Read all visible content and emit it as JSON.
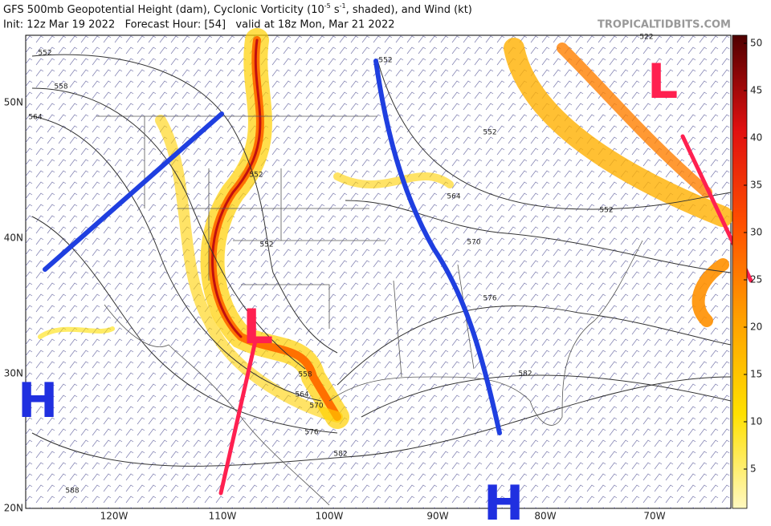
{
  "header": {
    "title_a": "GFS 500mb Geopotential Height (dam), Cyclonic Vorticity (10",
    "title_sup1": "-5",
    "title_b": " s",
    "title_sup2": "-1",
    "title_c": ", shaded), and Wind (kt)",
    "init": "Init: 12z Mar 19 2022   Forecast Hour: [54]   valid at 18z Mon, Mar 21 2022",
    "source": "TROPICALTIDBITS.COM"
  },
  "colorbar": {
    "ticks": [
      "5",
      "10",
      "15",
      "20",
      "25",
      "30",
      "35",
      "40",
      "45",
      "50"
    ]
  },
  "latitude_labels": [
    "50N",
    "40N",
    "30N",
    "20N"
  ],
  "longitude_labels": [
    "120W",
    "110W",
    "100W",
    "90W",
    "80W",
    "70W"
  ],
  "contour_labels": [
    "552",
    "558",
    "564",
    "552",
    "552",
    "552",
    "558",
    "564",
    "570",
    "576",
    "582",
    "588",
    "564",
    "570",
    "576",
    "582",
    "552",
    "552",
    "522"
  ],
  "annotations": [
    "H",
    "H",
    "L",
    "L"
  ]
}
